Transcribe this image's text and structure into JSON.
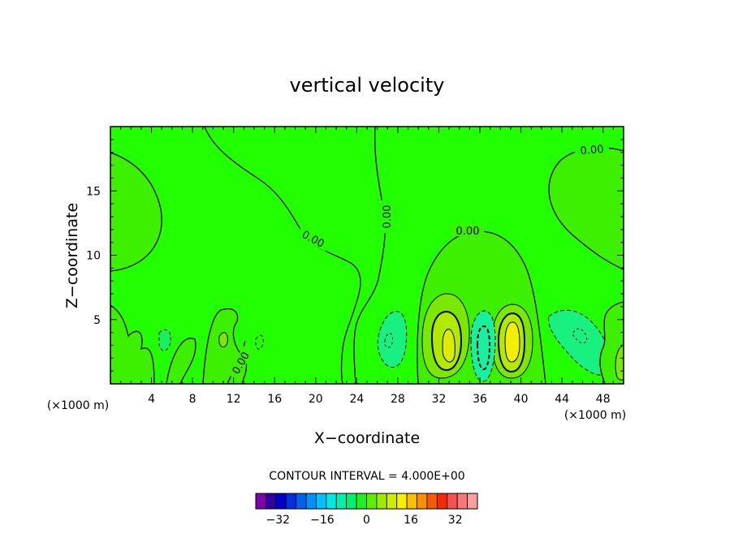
{
  "chart_data": {
    "type": "contour",
    "title": "vertical velocity",
    "xlabel": "X−coordinate",
    "ylabel": "Z−coordinate",
    "x_unit_left": "(×1000 m)",
    "x_unit_right": "(×1000 m)",
    "xlim": [
      0,
      50
    ],
    "ylim": [
      0,
      20
    ],
    "x_ticks": [
      "4",
      "8",
      "12",
      "16",
      "20",
      "24",
      "28",
      "32",
      "36",
      "40",
      "44",
      "48"
    ],
    "y_ticks": [
      "5",
      "10",
      "15"
    ],
    "contour_interval": "CONTOUR INTERVAL = 4.000E+00",
    "contour_labels": [
      "0.00",
      "0.00",
      "0.00",
      "0.00",
      "0.00"
    ],
    "colorbar_ticks": [
      "−32",
      "−16",
      "0",
      "16",
      "32"
    ],
    "colorbar_range": [
      -40,
      40
    ],
    "colorbar_colors": [
      "#8000b0",
      "#3000a0",
      "#0000c8",
      "#0030e0",
      "#0060f0",
      "#0090f8",
      "#00c0f8",
      "#00e8e0",
      "#00f0a8",
      "#00f070",
      "#20f020",
      "#60ee00",
      "#a0ea00",
      "#d0ec00",
      "#f8f000",
      "#f8c000",
      "#f89000",
      "#f85a00",
      "#f82800",
      "#f85050",
      "#f87878",
      "#f8a0a0"
    ],
    "field_background_color": "#22ff00",
    "features": [
      {
        "x": 33,
        "z": 3.2,
        "extremum": "max"
      },
      {
        "x": 39,
        "z": 3.2,
        "extremum": "max"
      },
      {
        "x": 36,
        "z": 2.5,
        "extremum": "min"
      },
      {
        "x": 27,
        "z": 3.0,
        "extremum": "min"
      },
      {
        "x": 45,
        "z": 3.5,
        "extremum": "min"
      }
    ]
  }
}
